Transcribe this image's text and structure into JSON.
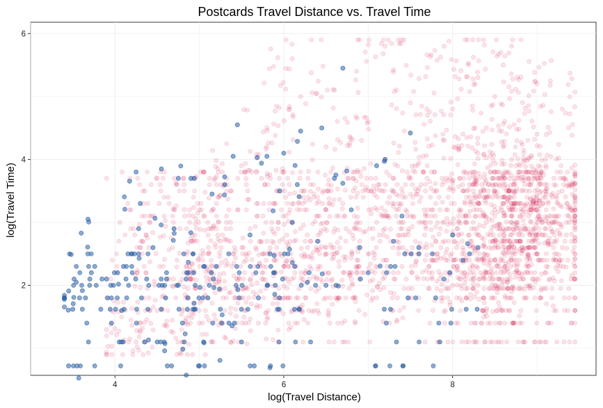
{
  "chart_data": {
    "type": "scatter",
    "title": "Postcards Travel Distance vs. Travel Time",
    "xlabel": "log(Travel Distance)",
    "ylabel": "log(Travel Time)",
    "xlim": [
      3.0,
      9.7
    ],
    "ylim": [
      0.57,
      6.18
    ],
    "xticks": [
      4,
      6,
      8
    ],
    "yticks": [
      2,
      4,
      6
    ],
    "grid": true,
    "series": [
      {
        "color": "#d6174c",
        "opacity": 0.12,
        "description_points": "dense cloud, concentrated near x≈8.5",
        "points": [
          [
            4.1,
            1.1
          ],
          [
            4.3,
            1.4
          ],
          [
            4.5,
            1.6
          ],
          [
            4.6,
            1.8
          ],
          [
            4.8,
            1.1
          ],
          [
            4.9,
            2.1
          ],
          [
            5.0,
            1.4
          ],
          [
            5.1,
            1.8
          ],
          [
            5.2,
            2.3
          ],
          [
            5.3,
            1.6
          ],
          [
            5.4,
            2.5
          ],
          [
            5.5,
            1.8
          ],
          [
            5.6,
            2.1
          ],
          [
            5.7,
            1.4
          ],
          [
            5.8,
            2.7
          ],
          [
            5.9,
            1.8
          ],
          [
            6.0,
            2.3
          ],
          [
            6.1,
            1.6
          ],
          [
            6.2,
            2.9
          ],
          [
            6.3,
            2.1
          ],
          [
            6.4,
            3.1
          ],
          [
            6.5,
            1.8
          ],
          [
            6.6,
            2.5
          ],
          [
            6.7,
            3.3
          ],
          [
            6.8,
            2.1
          ],
          [
            6.9,
            2.7
          ],
          [
            7.0,
            3.5
          ],
          [
            7.1,
            1.8
          ],
          [
            7.2,
            2.9
          ],
          [
            7.3,
            3.7
          ],
          [
            7.4,
            2.3
          ],
          [
            7.5,
            3.1
          ],
          [
            7.6,
            2.5
          ],
          [
            7.7,
            3.9
          ],
          [
            7.8,
            2.7
          ],
          [
            6.0,
            3.8
          ],
          [
            6.5,
            4.2
          ],
          [
            7.0,
            4.6
          ],
          [
            6.6,
            5.1
          ],
          [
            7.2,
            5.8
          ],
          [
            5.5,
            3.9
          ],
          [
            5.8,
            4.5
          ],
          [
            6.2,
            5.0
          ],
          [
            7.5,
            4.9
          ],
          [
            7.9,
            5.8
          ],
          [
            4.4,
            2.6
          ],
          [
            4.7,
            2.9
          ],
          [
            5.0,
            3.2
          ],
          [
            5.3,
            3.6
          ],
          [
            6.1,
            5.6
          ],
          [
            8.1,
            3.2
          ],
          [
            8.2,
            2.4
          ],
          [
            8.2,
            3.6
          ],
          [
            8.3,
            2.0
          ],
          [
            8.3,
            2.8
          ],
          [
            8.3,
            4.1
          ],
          [
            8.4,
            2.2
          ],
          [
            8.4,
            3.0
          ],
          [
            8.4,
            3.4
          ],
          [
            8.4,
            4.5
          ],
          [
            8.5,
            2.0
          ],
          [
            8.5,
            2.6
          ],
          [
            8.5,
            3.2
          ],
          [
            8.5,
            3.8
          ],
          [
            8.5,
            5.0
          ],
          [
            8.6,
            2.2
          ],
          [
            8.6,
            2.9
          ],
          [
            8.6,
            3.3
          ],
          [
            8.6,
            3.7
          ],
          [
            8.6,
            4.2
          ],
          [
            8.7,
            1.9
          ],
          [
            8.7,
            2.4
          ],
          [
            8.7,
            3.0
          ],
          [
            8.7,
            3.5
          ],
          [
            8.7,
            4.0
          ],
          [
            8.7,
            5.8
          ],
          [
            8.8,
            2.1
          ],
          [
            8.8,
            2.7
          ],
          [
            8.8,
            3.3
          ],
          [
            8.8,
            3.9
          ],
          [
            8.9,
            2.3
          ],
          [
            8.9,
            3.1
          ],
          [
            8.9,
            3.6
          ],
          [
            9.0,
            2.5
          ],
          [
            9.0,
            3.2
          ],
          [
            9.0,
            4.4
          ],
          [
            9.1,
            2.8
          ],
          [
            9.1,
            3.4
          ],
          [
            9.2,
            3.0
          ],
          [
            9.2,
            3.7
          ],
          [
            9.3,
            2.6
          ],
          [
            9.3,
            3.5
          ],
          [
            9.4,
            3.2
          ],
          [
            8.0,
            2.0
          ],
          [
            8.0,
            4.8
          ],
          [
            8.3,
            5.3
          ],
          [
            8.6,
            5.5
          ],
          [
            9.0,
            5.2
          ],
          [
            9.3,
            4.8
          ],
          [
            7.9,
            4.3
          ]
        ]
      },
      {
        "color": "#2e62a8",
        "opacity": 0.55,
        "points": [
          [
            3.45,
            0.72
          ],
          [
            3.55,
            0.72
          ],
          [
            3.5,
            1.62
          ],
          [
            3.58,
            1.8
          ],
          [
            3.65,
            1.8
          ],
          [
            3.48,
            2.49
          ],
          [
            3.6,
            2.83
          ],
          [
            3.68,
            3.05
          ],
          [
            3.72,
            2.2
          ],
          [
            3.76,
            2.3
          ],
          [
            3.9,
            2.1
          ],
          [
            3.95,
            2.0
          ],
          [
            4.05,
            1.1
          ],
          [
            4.08,
            1.6
          ],
          [
            4.1,
            2.3
          ],
          [
            4.2,
            2.5
          ],
          [
            4.25,
            3.8
          ],
          [
            4.28,
            2.9
          ],
          [
            4.3,
            3.3
          ],
          [
            4.35,
            1.1
          ],
          [
            4.4,
            2.0
          ],
          [
            4.45,
            2.6
          ],
          [
            4.5,
            1.1
          ],
          [
            4.55,
            3.85
          ],
          [
            4.6,
            1.8
          ],
          [
            4.62,
            0.72
          ],
          [
            4.7,
            2.9
          ],
          [
            4.75,
            3.7
          ],
          [
            4.8,
            1.4
          ],
          [
            4.85,
            2.2
          ],
          [
            4.9,
            3.7
          ],
          [
            4.95,
            2.0
          ],
          [
            5.0,
            0.72
          ],
          [
            5.05,
            1.1
          ],
          [
            5.1,
            1.8
          ],
          [
            5.15,
            3.45
          ],
          [
            5.2,
            2.3
          ],
          [
            5.3,
            3.6
          ],
          [
            5.35,
            1.4
          ],
          [
            5.4,
            4.05
          ],
          [
            5.45,
            4.55
          ],
          [
            5.5,
            1.1
          ],
          [
            5.6,
            2.8
          ],
          [
            5.65,
            0.72
          ],
          [
            5.7,
            1.8
          ],
          [
            5.8,
            4.05
          ],
          [
            5.9,
            2.0
          ],
          [
            5.95,
            3.5
          ],
          [
            6.0,
            4.1
          ],
          [
            6.05,
            2.5
          ],
          [
            6.1,
            3.0
          ],
          [
            6.2,
            4.45
          ],
          [
            6.3,
            2.2
          ],
          [
            6.4,
            2.7
          ],
          [
            6.45,
            4.5
          ],
          [
            6.5,
            2.0
          ],
          [
            6.6,
            3.7
          ],
          [
            6.7,
            5.45
          ],
          [
            6.8,
            3.2
          ],
          [
            6.9,
            2.6
          ],
          [
            7.0,
            2.2
          ],
          [
            7.1,
            3.9
          ],
          [
            7.2,
            4.0
          ],
          [
            7.3,
            2.7
          ],
          [
            7.4,
            3.1
          ],
          [
            7.5,
            4.42
          ],
          [
            7.6,
            2.6
          ],
          [
            7.8,
            1.8
          ],
          [
            8.0,
            2.8
          ],
          [
            8.2,
            2.5
          ]
        ]
      }
    ]
  }
}
